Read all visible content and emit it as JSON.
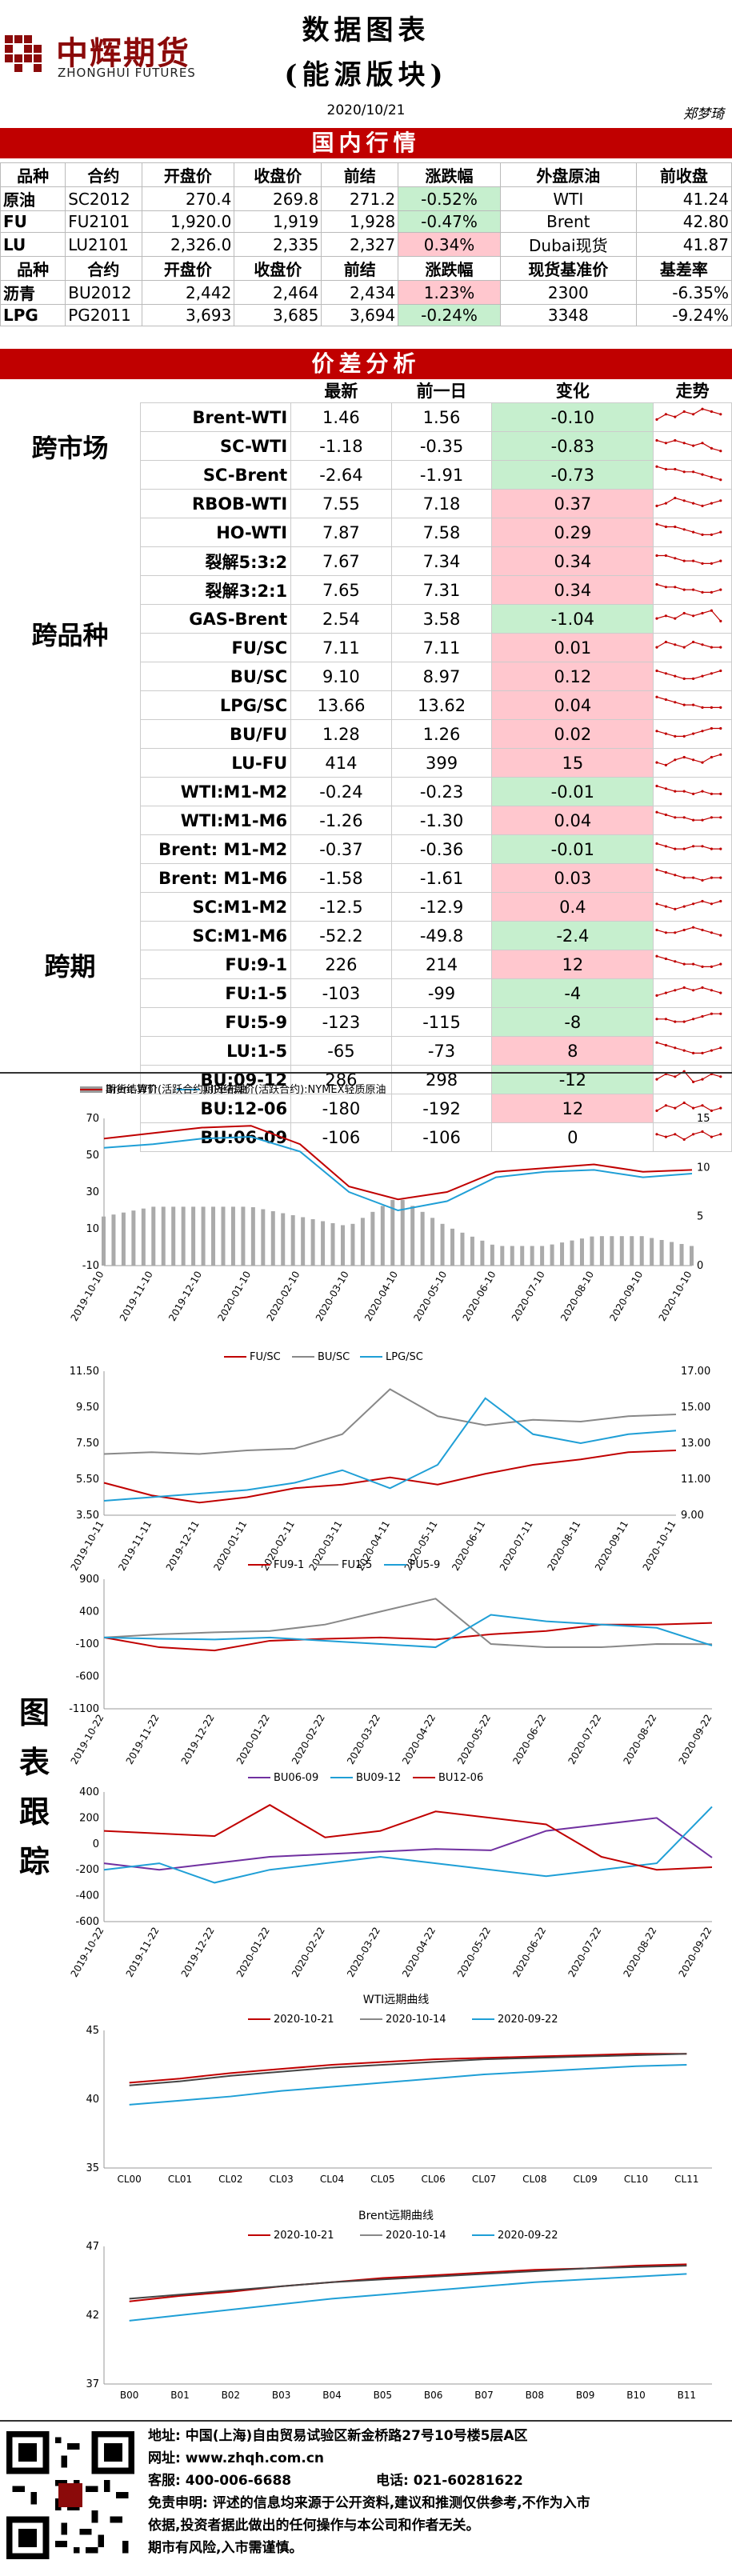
{
  "header": {
    "logo_cn": "中辉期货",
    "logo_en": "ZHONGHUI FUTURES",
    "title_line1": "数据图表",
    "title_line2": "(能源版块)",
    "date": "2020/10/21",
    "author": "郑梦琦"
  },
  "domestic": {
    "section_title": "国内行情",
    "head1": [
      "品种",
      "合约",
      "开盘价",
      "收盘价",
      "前结",
      "涨跌幅",
      "外盘原油",
      "前收盘"
    ],
    "rows1": [
      [
        "原油",
        "SC2012",
        "270.4",
        "269.8",
        "271.2",
        "-0.52%",
        "WTI",
        "41.24"
      ],
      [
        "FU",
        "FU2101",
        "1,920.0",
        "1,919",
        "1,928",
        "-0.47%",
        "Brent",
        "42.80"
      ],
      [
        "LU",
        "LU2101",
        "2,326.0",
        "2,335",
        "2,327",
        "0.34%",
        "Dubai现货",
        "41.87"
      ]
    ],
    "head2": [
      "品种",
      "合约",
      "开盘价",
      "收盘价",
      "前结",
      "涨跌幅",
      "现货基准价",
      "基差率"
    ],
    "rows2": [
      [
        "沥青",
        "BU2012",
        "2,442",
        "2,464",
        "2,434",
        "1.23%",
        "2300",
        "-6.35%"
      ],
      [
        "LPG",
        "PG2011",
        "3,693",
        "3,685",
        "3,694",
        "-0.24%",
        "3348",
        "-9.24%"
      ]
    ]
  },
  "spread": {
    "section_title": "价差分析",
    "columns": [
      "最新",
      "前一日",
      "变化",
      "走势"
    ],
    "groups": [
      "跨市场",
      "跨品种",
      "跨期"
    ],
    "rows": [
      {
        "name": "Brent-WTI",
        "latest": "1.46",
        "prev": "1.56",
        "chg": "-0.10",
        "trend": [
          3,
          5,
          4,
          6,
          5,
          7,
          6,
          5
        ]
      },
      {
        "name": "SC-WTI",
        "latest": "-1.18",
        "prev": "-0.35",
        "chg": "-0.83",
        "trend": [
          6,
          5,
          6,
          5,
          4,
          5,
          3,
          2
        ]
      },
      {
        "name": "SC-Brent",
        "latest": "-2.64",
        "prev": "-1.91",
        "chg": "-0.73",
        "trend": [
          7,
          6,
          6,
          5,
          5,
          4,
          3,
          2
        ]
      },
      {
        "name": "RBOB-WTI",
        "latest": "7.55",
        "prev": "7.18",
        "chg": "0.37",
        "trend": [
          3,
          4,
          6,
          5,
          4,
          3,
          4,
          5
        ]
      },
      {
        "name": "HO-WTI",
        "latest": "7.87",
        "prev": "7.58",
        "chg": "0.29",
        "trend": [
          7,
          6,
          6,
          5,
          4,
          3,
          3,
          4
        ]
      },
      {
        "name": "裂解5:3:2",
        "latest": "7.67",
        "prev": "7.34",
        "chg": "0.34",
        "trend": [
          6,
          6,
          5,
          4,
          4,
          3,
          3,
          4
        ]
      },
      {
        "name": "裂解3:2:1",
        "latest": "7.65",
        "prev": "7.31",
        "chg": "0.34",
        "trend": [
          6,
          5,
          5,
          4,
          4,
          3,
          3,
          4
        ]
      },
      {
        "name": "GAS-Brent",
        "latest": "2.54",
        "prev": "3.58",
        "chg": "-1.04",
        "trend": [
          4,
          5,
          4,
          6,
          5,
          6,
          7,
          3
        ]
      },
      {
        "name": "FU/SC",
        "latest": "7.11",
        "prev": "7.11",
        "chg": "0.01",
        "trend": [
          4,
          6,
          5,
          4,
          6,
          5,
          4,
          4
        ]
      },
      {
        "name": "BU/SC",
        "latest": "9.10",
        "prev": "8.97",
        "chg": "0.12",
        "trend": [
          6,
          5,
          4,
          3,
          3,
          4,
          5,
          6
        ]
      },
      {
        "name": "LPG/SC",
        "latest": "13.66",
        "prev": "13.62",
        "chg": "0.04",
        "trend": [
          7,
          6,
          5,
          4,
          4,
          3,
          3,
          3
        ]
      },
      {
        "name": "BU/FU",
        "latest": "1.28",
        "prev": "1.26",
        "chg": "0.02",
        "trend": [
          5,
          4,
          3,
          3,
          4,
          5,
          6,
          6
        ]
      },
      {
        "name": "LU-FU",
        "latest": "414",
        "prev": "399",
        "chg": "15",
        "trend": [
          4,
          3,
          5,
          6,
          5,
          4,
          6,
          7
        ]
      },
      {
        "name": "WTI:M1-M2",
        "latest": "-0.24",
        "prev": "-0.23",
        "chg": "-0.01",
        "trend": [
          6,
          5,
          4,
          4,
          3,
          4,
          3,
          3
        ]
      },
      {
        "name": "WTI:M1-M6",
        "latest": "-1.26",
        "prev": "-1.30",
        "chg": "0.04",
        "trend": [
          7,
          6,
          5,
          5,
          4,
          4,
          5,
          5
        ]
      },
      {
        "name": "Brent: M1-M2",
        "latest": "-0.37",
        "prev": "-0.36",
        "chg": "-0.01",
        "trend": [
          6,
          5,
          4,
          4,
          5,
          5,
          4,
          4
        ]
      },
      {
        "name": "Brent: M1-M6",
        "latest": "-1.58",
        "prev": "-1.61",
        "chg": "0.03",
        "trend": [
          7,
          6,
          5,
          4,
          4,
          3,
          4,
          4
        ]
      },
      {
        "name": "SC:M1-M2",
        "latest": "-12.5",
        "prev": "-12.9",
        "chg": "0.4",
        "trend": [
          5,
          4,
          3,
          4,
          5,
          6,
          5,
          6
        ]
      },
      {
        "name": "SC:M1-M6",
        "latest": "-52.2",
        "prev": "-49.8",
        "chg": "-2.4",
        "trend": [
          6,
          5,
          5,
          6,
          7,
          6,
          5,
          4
        ]
      },
      {
        "name": "FU:9-1",
        "latest": "226",
        "prev": "214",
        "chg": "12",
        "trend": [
          7,
          6,
          5,
          4,
          4,
          3,
          3,
          4
        ]
      },
      {
        "name": "FU:1-5",
        "latest": "-103",
        "prev": "-99",
        "chg": "-4",
        "trend": [
          3,
          4,
          5,
          6,
          5,
          6,
          5,
          4
        ]
      },
      {
        "name": "FU:5-9",
        "latest": "-123",
        "prev": "-115",
        "chg": "-8",
        "trend": [
          5,
          5,
          4,
          4,
          5,
          6,
          7,
          7
        ]
      },
      {
        "name": "LU:1-5",
        "latest": "-65",
        "prev": "-73",
        "chg": "8",
        "trend": [
          7,
          6,
          5,
          4,
          3,
          3,
          4,
          5
        ]
      },
      {
        "name": "BU:09-12",
        "latest": "286",
        "prev": "298",
        "chg": "-12",
        "trend": [
          4,
          6,
          5,
          7,
          3,
          4,
          6,
          5
        ]
      },
      {
        "name": "BU:12-06",
        "latest": "-180",
        "prev": "-192",
        "chg": "12",
        "trend": [
          3,
          5,
          4,
          6,
          4,
          5,
          3,
          4
        ]
      },
      {
        "name": "BU:06-09",
        "latest": "-106",
        "prev": "-106",
        "chg": "0",
        "trend": [
          5,
          4,
          5,
          3,
          5,
          6,
          4,
          5
        ]
      }
    ]
  },
  "side_label": [
    "图",
    "表",
    "跟",
    "踪"
  ],
  "colors": {
    "red": "#c00000",
    "pos_bg": "#ffc7ce",
    "neg_bg": "#c6efce",
    "blue": "#1f9fd6",
    "gray": "#888888"
  },
  "chart_data": [
    {
      "type": "line",
      "legend": [
        "Brent-WTI",
        "期货结算价(活跃合约):NYMEX轻质原油",
        "期货结算价(活跃合约):IPE布油"
      ],
      "x": [
        "2019-10-10",
        "2019-11-10",
        "2019-12-10",
        "2020-01-10",
        "2020-02-10",
        "2020-03-10",
        "2020-04-10",
        "2020-05-10",
        "2020-06-10",
        "2020-07-10",
        "2020-08-10",
        "2020-09-10",
        "2020-10-10"
      ],
      "left_ticks": [
        "70",
        "50",
        "30",
        "10",
        "-10"
      ],
      "right_ticks": [
        "15",
        "10",
        "5",
        "0"
      ],
      "series": [
        {
          "name": "期货结算价(活跃合约):NYMEX轻质原油",
          "values": [
            54,
            56,
            59,
            60,
            52,
            30,
            20,
            25,
            38,
            41,
            42,
            38,
            40
          ]
        },
        {
          "name": "期货结算价(活跃合约):IPE布油",
          "values": [
            59,
            62,
            65,
            66,
            56,
            33,
            26,
            30,
            41,
            43,
            45,
            41,
            42
          ]
        }
      ],
      "bar_series": {
        "name": "Brent-WTI",
        "values": [
          5,
          6,
          6,
          6,
          5,
          4,
          7,
          4,
          2,
          2,
          3,
          3,
          2
        ]
      }
    },
    {
      "type": "line",
      "legend": [
        "FU/SC",
        "BU/SC",
        "LPG/SC"
      ],
      "x": [
        "2019-10-11",
        "2019-11-11",
        "2019-12-11",
        "2020-01-11",
        "2020-02-11",
        "2020-03-11",
        "2020-04-11",
        "2020-05-11",
        "2020-06-11",
        "2020-07-11",
        "2020-08-11",
        "2020-09-11",
        "2020-10-11"
      ],
      "left_ticks": [
        "11.50",
        "9.50",
        "7.50",
        "5.50",
        "3.50"
      ],
      "right_ticks": [
        "17.00",
        "15.00",
        "13.00",
        "11.00",
        "9.00"
      ],
      "series": [
        {
          "name": "FU/SC",
          "values": [
            5.3,
            4.6,
            4.2,
            4.5,
            5.0,
            5.2,
            5.6,
            5.2,
            5.8,
            6.3,
            6.6,
            7.0,
            7.1
          ]
        },
        {
          "name": "BU/SC",
          "values": [
            6.9,
            7.0,
            6.9,
            7.1,
            7.2,
            8.0,
            10.5,
            9.0,
            8.5,
            8.8,
            8.7,
            9.0,
            9.1
          ]
        },
        {
          "name": "LPG/SC",
          "values": [
            9.8,
            10.0,
            10.2,
            10.4,
            10.8,
            11.5,
            10.5,
            11.8,
            15.5,
            13.5,
            13.0,
            13.5,
            13.7
          ]
        }
      ]
    },
    {
      "type": "line",
      "legend": [
        "FU9-1",
        "FU1-5",
        "FU5-9"
      ],
      "x": [
        "2019-10-22",
        "2019-11-22",
        "2019-12-22",
        "2020-01-22",
        "2020-02-22",
        "2020-03-22",
        "2020-04-22",
        "2020-05-22",
        "2020-06-22",
        "2020-07-22",
        "2020-08-22",
        "2020-09-22"
      ],
      "left_ticks": [
        "900",
        "400",
        "-100",
        "-600",
        "-1100"
      ],
      "series": [
        {
          "name": "FU9-1",
          "values": [
            0,
            -150,
            -200,
            -50,
            -20,
            0,
            -30,
            50,
            100,
            200,
            200,
            226
          ]
        },
        {
          "name": "FU1-5",
          "values": [
            0,
            50,
            80,
            100,
            200,
            400,
            600,
            -100,
            -150,
            -150,
            -100,
            -103
          ]
        },
        {
          "name": "FU5-9",
          "values": [
            0,
            -20,
            -30,
            0,
            -50,
            -100,
            -150,
            350,
            250,
            200,
            150,
            -123
          ]
        }
      ]
    },
    {
      "type": "line",
      "legend": [
        "BU06-09",
        "BU09-12",
        "BU12-06"
      ],
      "x": [
        "2019-10-22",
        "2019-11-22",
        "2019-12-22",
        "2020-01-22",
        "2020-02-22",
        "2020-03-22",
        "2020-04-22",
        "2020-05-22",
        "2020-06-22",
        "2020-07-22",
        "2020-08-22",
        "2020-09-22"
      ],
      "left_ticks": [
        "400",
        "200",
        "0",
        "-200",
        "-400",
        "-600"
      ],
      "series": [
        {
          "name": "BU06-09",
          "values": [
            -150,
            -200,
            -150,
            -100,
            -80,
            -60,
            -40,
            -50,
            100,
            150,
            200,
            -106
          ]
        },
        {
          "name": "BU09-12",
          "values": [
            -200,
            -150,
            -300,
            -200,
            -150,
            -100,
            -150,
            -200,
            -250,
            -200,
            -150,
            286
          ]
        },
        {
          "name": "BU12-06",
          "values": [
            100,
            80,
            60,
            300,
            50,
            100,
            250,
            200,
            150,
            -100,
            -200,
            -180
          ]
        }
      ]
    },
    {
      "type": "line",
      "title": "WTI远期曲线",
      "legend": [
        "2020-10-21",
        "2020-10-14",
        "2020-09-22"
      ],
      "x": [
        "CL00",
        "CL01",
        "CL02",
        "CL03",
        "CL04",
        "CL05",
        "CL06",
        "CL07",
        "CL08",
        "CL09",
        "CL10",
        "CL11"
      ],
      "left_ticks": [
        "45",
        "40",
        "35"
      ],
      "ylim": [
        35,
        45
      ],
      "series": [
        {
          "name": "2020-10-21",
          "values": [
            41.2,
            41.5,
            41.9,
            42.2,
            42.5,
            42.7,
            42.9,
            43.0,
            43.1,
            43.2,
            43.3,
            43.3
          ]
        },
        {
          "name": "2020-10-14",
          "values": [
            41.0,
            41.3,
            41.7,
            42.0,
            42.3,
            42.5,
            42.7,
            42.9,
            43.0,
            43.1,
            43.2,
            43.3
          ]
        },
        {
          "name": "2020-09-22",
          "values": [
            39.6,
            39.9,
            40.2,
            40.6,
            40.9,
            41.2,
            41.5,
            41.8,
            42.0,
            42.2,
            42.4,
            42.5
          ]
        }
      ]
    },
    {
      "type": "line",
      "title": "Brent远期曲线",
      "legend": [
        "2020-10-21",
        "2020-10-14",
        "2020-09-22"
      ],
      "x": [
        "B00",
        "B01",
        "B02",
        "B03",
        "B04",
        "B05",
        "B06",
        "B07",
        "B08",
        "B09",
        "B10",
        "B11"
      ],
      "left_ticks": [
        "47",
        "42",
        "37"
      ],
      "ylim": [
        37,
        47
      ],
      "series": [
        {
          "name": "2020-10-21",
          "values": [
            43.0,
            43.4,
            43.7,
            44.1,
            44.4,
            44.7,
            44.9,
            45.1,
            45.3,
            45.4,
            45.6,
            45.7
          ]
        },
        {
          "name": "2020-10-14",
          "values": [
            43.2,
            43.5,
            43.8,
            44.1,
            44.4,
            44.6,
            44.8,
            45.0,
            45.2,
            45.4,
            45.5,
            45.6
          ]
        },
        {
          "name": "2020-09-22",
          "values": [
            41.6,
            42.0,
            42.4,
            42.8,
            43.2,
            43.5,
            43.8,
            44.1,
            44.4,
            44.6,
            44.8,
            45.0
          ]
        }
      ]
    }
  ],
  "footer": {
    "address": "地址: 中国(上海)自由贸易试验区新金桥路27号10号楼5层A区",
    "website": "网址: www.zhqh.com.cn",
    "phone": "客服: 400-006-6688",
    "tel": "电话: 021-60281622",
    "disclaimer1": "免责申明: 评述的信息均来源于公开资料,建议和推测仅供参考,不作为入市",
    "disclaimer2": "依据,投资者据此做出的任何操作与本公司和作者无关。",
    "disclaimer3": "期市有风险,入市需谨慎。"
  }
}
